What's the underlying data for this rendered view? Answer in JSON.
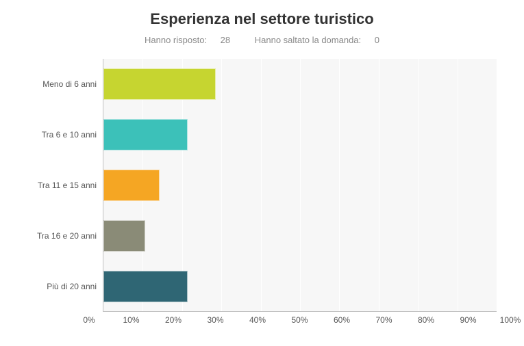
{
  "chart": {
    "type": "bar",
    "title": "Esperienza nel settore turistico",
    "title_fontsize": 22,
    "title_color": "#333333",
    "subtitle_responded_label": "Hanno risposto:",
    "subtitle_responded_value": "28",
    "subtitle_skipped_label": "Hanno saltato la domanda:",
    "subtitle_skipped_value": "0",
    "subtitle_color": "#888888",
    "background_color": "#f7f7f7",
    "grid_color": "#ffffff",
    "axis_color": "#c0c0c0",
    "label_color": "#555555",
    "label_fontsize": 12,
    "xlim": [
      0,
      100
    ],
    "xtick_step": 10,
    "xticks": [
      "0%",
      "10%",
      "20%",
      "30%",
      "40%",
      "50%",
      "60%",
      "70%",
      "80%",
      "90%",
      "100%"
    ],
    "bar_height_pct": 62,
    "categories": [
      {
        "label": "Meno di 6 anni",
        "value": 28.5,
        "color": "#c6d530"
      },
      {
        "label": "Tra 6 e 10 anni",
        "value": 21.5,
        "color": "#3cc1b9"
      },
      {
        "label": "Tra 11 e 15 anni",
        "value": 14.3,
        "color": "#f5a623"
      },
      {
        "label": "Tra 16 e 20 anni",
        "value": 10.7,
        "color": "#8a8b77"
      },
      {
        "label": "Più di 20 anni",
        "value": 21.5,
        "color": "#2f6674"
      }
    ]
  }
}
